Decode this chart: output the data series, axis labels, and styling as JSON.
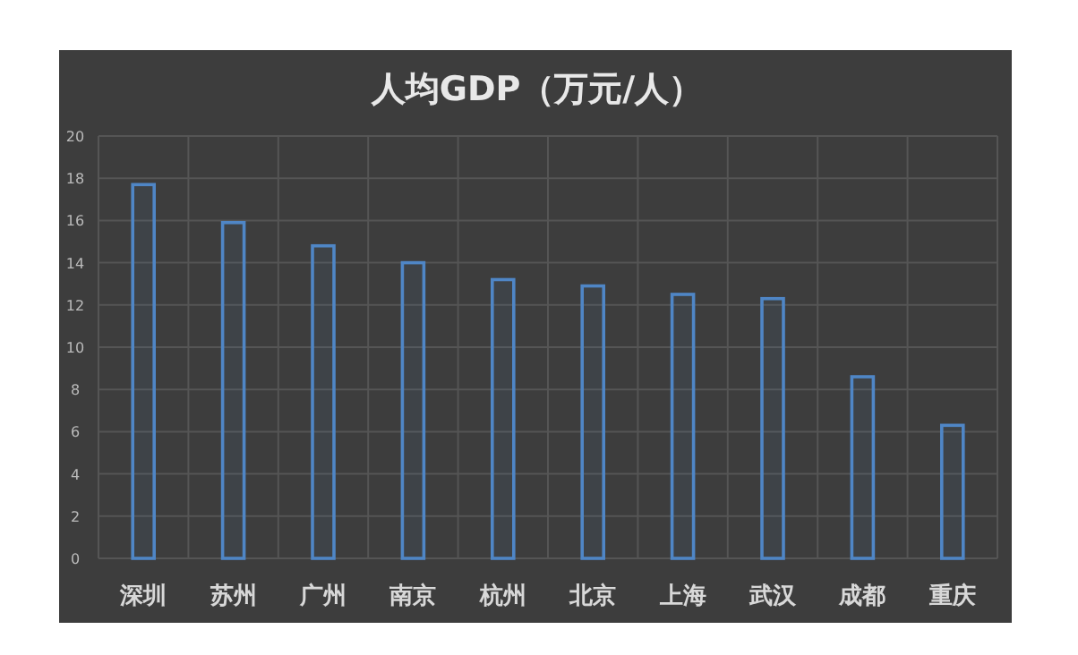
{
  "chart_data": {
    "type": "bar",
    "title": "人均GDP（万元/人）",
    "categories": [
      "深圳",
      "苏州",
      "广州",
      "南京",
      "杭州",
      "北京",
      "上海",
      "武汉",
      "成都",
      "重庆"
    ],
    "values": [
      17.7,
      15.9,
      14.8,
      14.0,
      13.2,
      12.9,
      12.5,
      12.3,
      8.6,
      6.3
    ],
    "color": "#4f86c6",
    "ylim": [
      0,
      20
    ],
    "yticks": [
      0,
      2,
      4,
      6,
      8,
      10,
      12,
      14,
      16,
      18,
      20
    ],
    "grid": true
  }
}
